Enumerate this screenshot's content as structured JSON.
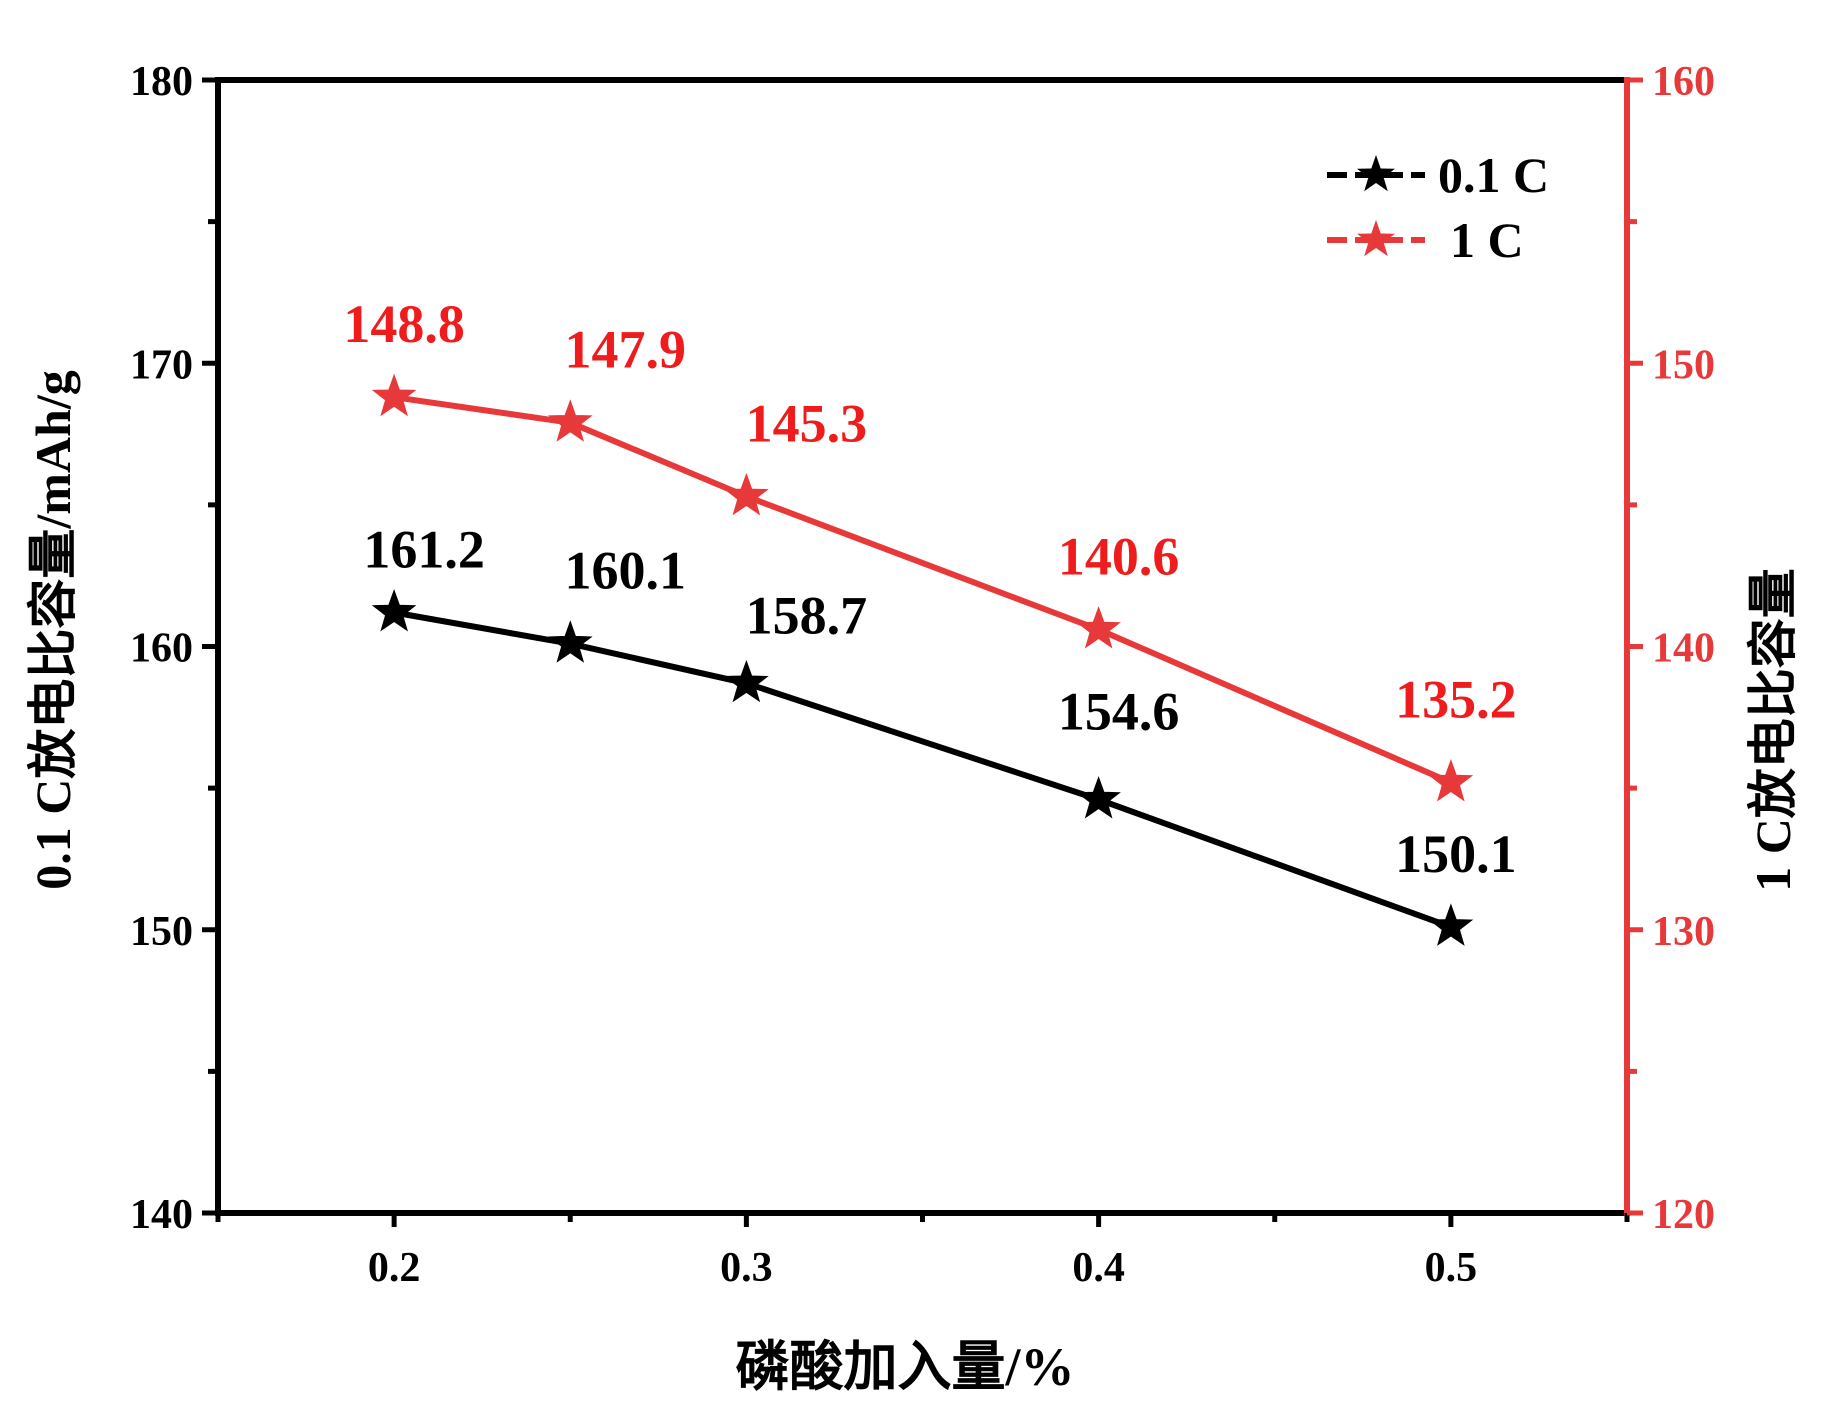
{
  "chart_data": {
    "type": "line",
    "xlabel": "磷酸加入量/%",
    "ylabel": "0.1 C放电比容量/mAh/g",
    "y2label": "1 C放电比容量",
    "x_ticks": [
      0.2,
      0.3,
      0.4,
      0.5
    ],
    "x_tick_labels": [
      "0.2",
      "0.3",
      "0.4",
      "0.5"
    ],
    "xlim": [
      0.15,
      0.55
    ],
    "ylim": [
      140,
      180
    ],
    "y_ticks": [
      140,
      150,
      160,
      170,
      180
    ],
    "y_tick_labels": [
      "140",
      "150",
      "160",
      "170",
      "180"
    ],
    "y2lim": [
      120,
      160
    ],
    "y2_ticks": [
      120,
      130,
      140,
      150,
      160
    ],
    "y2_tick_labels": [
      "120",
      "130",
      "140",
      "150",
      "160"
    ],
    "grid": false,
    "legend_position": "top-right",
    "series": [
      {
        "name": "0.1 C",
        "axis": "left",
        "color": "#000000",
        "marker": "star",
        "x": [
          0.2,
          0.25,
          0.3,
          0.4,
          0.5
        ],
        "values": [
          161.2,
          160.1,
          158.7,
          154.6,
          150.1
        ],
        "labels": [
          "161.2",
          "160.1",
          "158.7",
          "154.6",
          "150.1"
        ]
      },
      {
        "name": "1 C",
        "axis": "right",
        "color": "#e8393a",
        "label_color": "#ee1c1c",
        "marker": "star",
        "x": [
          0.2,
          0.25,
          0.3,
          0.4,
          0.5
        ],
        "values": [
          148.8,
          147.9,
          145.3,
          140.6,
          135.2
        ],
        "labels": [
          "148.8",
          "147.9",
          "145.3",
          "140.6",
          "135.2"
        ]
      }
    ]
  }
}
